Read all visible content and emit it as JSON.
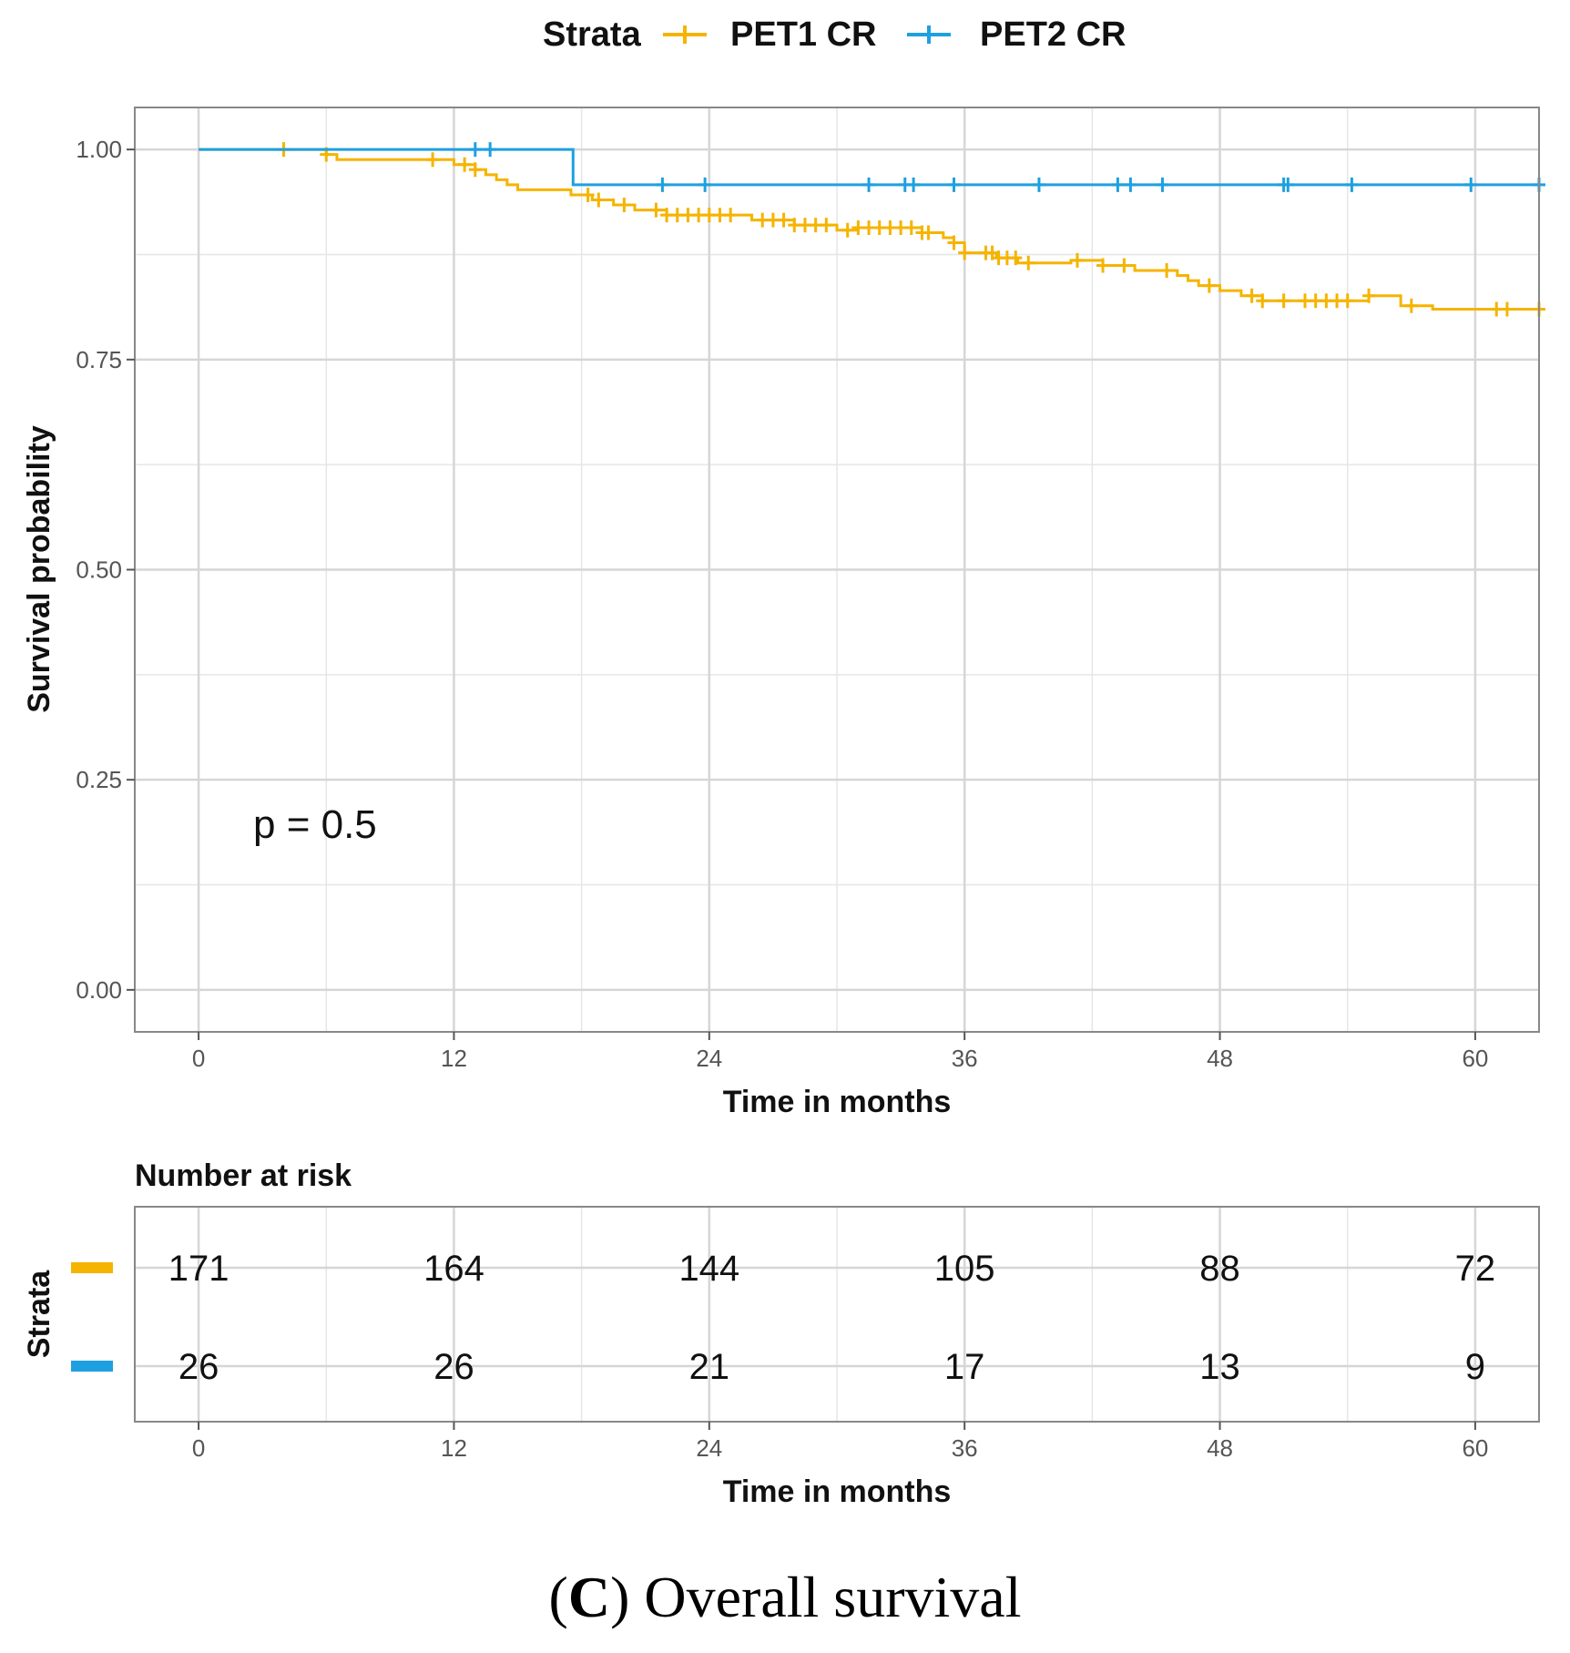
{
  "chart_data": {
    "type": "line",
    "subtype": "kaplan-meier",
    "title": "",
    "xlabel": "Time in months",
    "ylabel": "Survival probability",
    "xlim": [
      -3,
      63
    ],
    "ylim": [
      -0.05,
      1.05
    ],
    "xticks": [
      0,
      12,
      24,
      36,
      48,
      60
    ],
    "xtick_labels": [
      "0",
      "12",
      "24",
      "36",
      "48",
      "60"
    ],
    "yticks": [
      0,
      0.25,
      0.5,
      0.75,
      1.0
    ],
    "ytick_labels": [
      "0.00",
      "0.25",
      "0.50",
      "0.75",
      "1.00"
    ],
    "grid": true,
    "pvalue_text": "p = 0.5",
    "legend": {
      "title": "Strata",
      "position": "top",
      "entries": [
        "PET1 CR",
        "PET2 CR"
      ]
    },
    "series": [
      {
        "name": "PET1 CR",
        "color": "#f5b400",
        "steps": [
          [
            0,
            1.0
          ],
          [
            6,
            0.994
          ],
          [
            6.5,
            0.988
          ],
          [
            12,
            0.982
          ],
          [
            13,
            0.976
          ],
          [
            13.5,
            0.97
          ],
          [
            14,
            0.964
          ],
          [
            14.5,
            0.958
          ],
          [
            15,
            0.952
          ],
          [
            17.5,
            0.946
          ],
          [
            18.5,
            0.94
          ],
          [
            19.5,
            0.934
          ],
          [
            20.5,
            0.928
          ],
          [
            22,
            0.922
          ],
          [
            26,
            0.916
          ],
          [
            28,
            0.91
          ],
          [
            30,
            0.904
          ],
          [
            31,
            0.907
          ],
          [
            34,
            0.901
          ],
          [
            35,
            0.895
          ],
          [
            35.5,
            0.889
          ],
          [
            36,
            0.877
          ],
          [
            37.5,
            0.871
          ],
          [
            38.5,
            0.865
          ],
          [
            41,
            0.868
          ],
          [
            42.5,
            0.862
          ],
          [
            44,
            0.856
          ],
          [
            46,
            0.85
          ],
          [
            46.5,
            0.844
          ],
          [
            47,
            0.838
          ],
          [
            48,
            0.832
          ],
          [
            49,
            0.826
          ],
          [
            50,
            0.82
          ],
          [
            55,
            0.826
          ],
          [
            56.5,
            0.814
          ],
          [
            58,
            0.81
          ],
          [
            63,
            0.81
          ]
        ],
        "censor_times": [
          4,
          6,
          11,
          12.5,
          13,
          18.3,
          18.8,
          20,
          21.5,
          22,
          22.5,
          23,
          23.5,
          24,
          24.5,
          25,
          26.5,
          27,
          27.5,
          28,
          28.5,
          29,
          29.5,
          30.5,
          31,
          31.5,
          32,
          32.5,
          33,
          33.5,
          34,
          34.3,
          35.5,
          36,
          37,
          37.3,
          37.6,
          38,
          38.4,
          39,
          41.3,
          42.5,
          43.5,
          45.5,
          47.5,
          49.5,
          50,
          51,
          52,
          52.5,
          53,
          53.5,
          54,
          55,
          57,
          61,
          61.5,
          63
        ]
      },
      {
        "name": "PET2 CR",
        "color": "#1ea0e0",
        "steps": [
          [
            0,
            1.0
          ],
          [
            17.6,
            0.958
          ],
          [
            63,
            0.958
          ]
        ],
        "censor_times": [
          13,
          13.7,
          21.8,
          23.8,
          31.5,
          33.2,
          33.6,
          35.5,
          39.5,
          43.2,
          43.8,
          45.3,
          51,
          51.2,
          54.2,
          59.8,
          63
        ]
      }
    ],
    "risk_table": {
      "title": "Number at risk",
      "ylabel": "Strata",
      "xlabel": "Time in months",
      "times": [
        0,
        12,
        24,
        36,
        48,
        60
      ],
      "rows": [
        {
          "strata": "PET1 CR",
          "color": "#f5b400",
          "values": [
            "171",
            "164",
            "144",
            "105",
            "88",
            "72"
          ]
        },
        {
          "strata": "PET2 CR",
          "color": "#1ea0e0",
          "values": [
            "26",
            "26",
            "21",
            "17",
            "13",
            "9"
          ]
        }
      ]
    }
  },
  "caption": {
    "open": "(",
    "letter": "C",
    "rest": ") Overall survival"
  }
}
